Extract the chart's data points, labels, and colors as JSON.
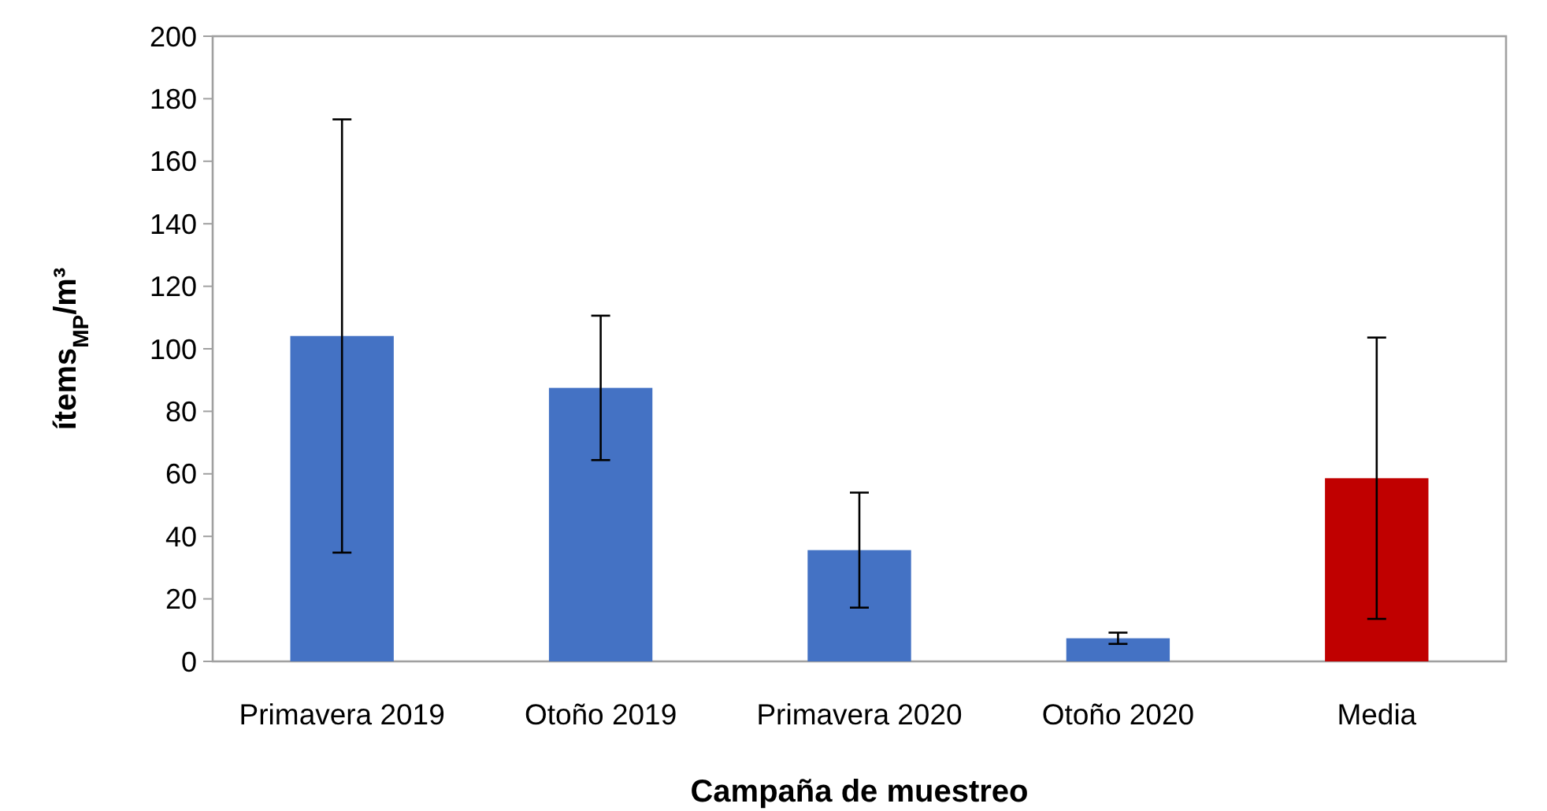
{
  "chart_data": {
    "type": "bar",
    "xlabel": "Campaña de muestreo",
    "ylabel": "ítems$_{MP}$/m³",
    "categories": [
      "Primavera 2019",
      "Otoño 2019",
      "Primavera 2020",
      "Otoño 2020",
      "Media"
    ],
    "values": [
      104.1,
      87.5,
      35.6,
      7.4,
      58.6
    ],
    "errors": [
      69.3,
      23.1,
      18.4,
      1.8,
      45
    ],
    "colors": [
      "#4472c4",
      "#4472c4",
      "#4472c4",
      "#4472c4",
      "#c00000"
    ],
    "ylim": [
      0,
      200
    ],
    "yticks": [
      0,
      20,
      40,
      60,
      80,
      100,
      120,
      140,
      160,
      180,
      200
    ],
    "grid": false
  }
}
